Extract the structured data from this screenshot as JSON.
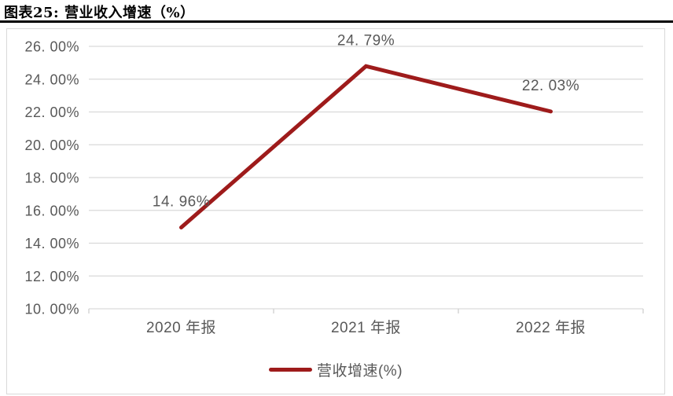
{
  "title": "图表25:  营业收入增速（%）",
  "colors": {
    "line": "#9E1B1B",
    "text": "#595959",
    "grid": "#D9D9D9",
    "axis": "#D0D0D0",
    "title": "#000000",
    "panel_border": "#D9D9D9"
  },
  "chart_data": {
    "type": "line",
    "categories": [
      "2020 年报",
      "2021 年报",
      "2022 年报"
    ],
    "series": [
      {
        "name": "营收增速(%)",
        "values": [
          14.96,
          24.79,
          22.03
        ]
      }
    ],
    "data_labels": [
      "14. 96%",
      "24. 79%",
      "22. 03%"
    ],
    "y_tick_values": [
      26,
      24,
      22,
      20,
      18,
      16,
      14,
      12,
      10
    ],
    "y_tick_labels": [
      "26. 00%",
      "24. 00%",
      "22. 00%",
      "20. 00%",
      "18. 00%",
      "16. 00%",
      "14. 00%",
      "12. 00%",
      "10. 00%"
    ],
    "ylim": [
      10,
      26
    ],
    "y_tick_step": 2,
    "grid": "horizontal",
    "legend_position": "bottom",
    "title": "",
    "xlabel": "",
    "ylabel": ""
  }
}
